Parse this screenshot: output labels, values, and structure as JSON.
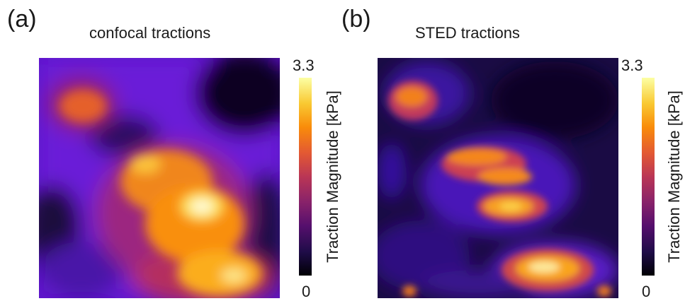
{
  "panel_a": {
    "label": "(a)",
    "title": "confocal tractions",
    "colorbar": {
      "max": "3.3",
      "min": "0",
      "label": "Traction Magnitude [kPa]"
    }
  },
  "panel_b": {
    "label": "(b)",
    "title": "STED tractions",
    "colorbar": {
      "max": "3.3",
      "min": "0",
      "label": "Traction Magnitude [kPa]"
    }
  },
  "colormap": [
    "#000004",
    "#1f0c48",
    "#550f6d",
    "#88226a",
    "#ba3655",
    "#e35933",
    "#f98c0a",
    "#f9c932",
    "#fcffa4"
  ]
}
